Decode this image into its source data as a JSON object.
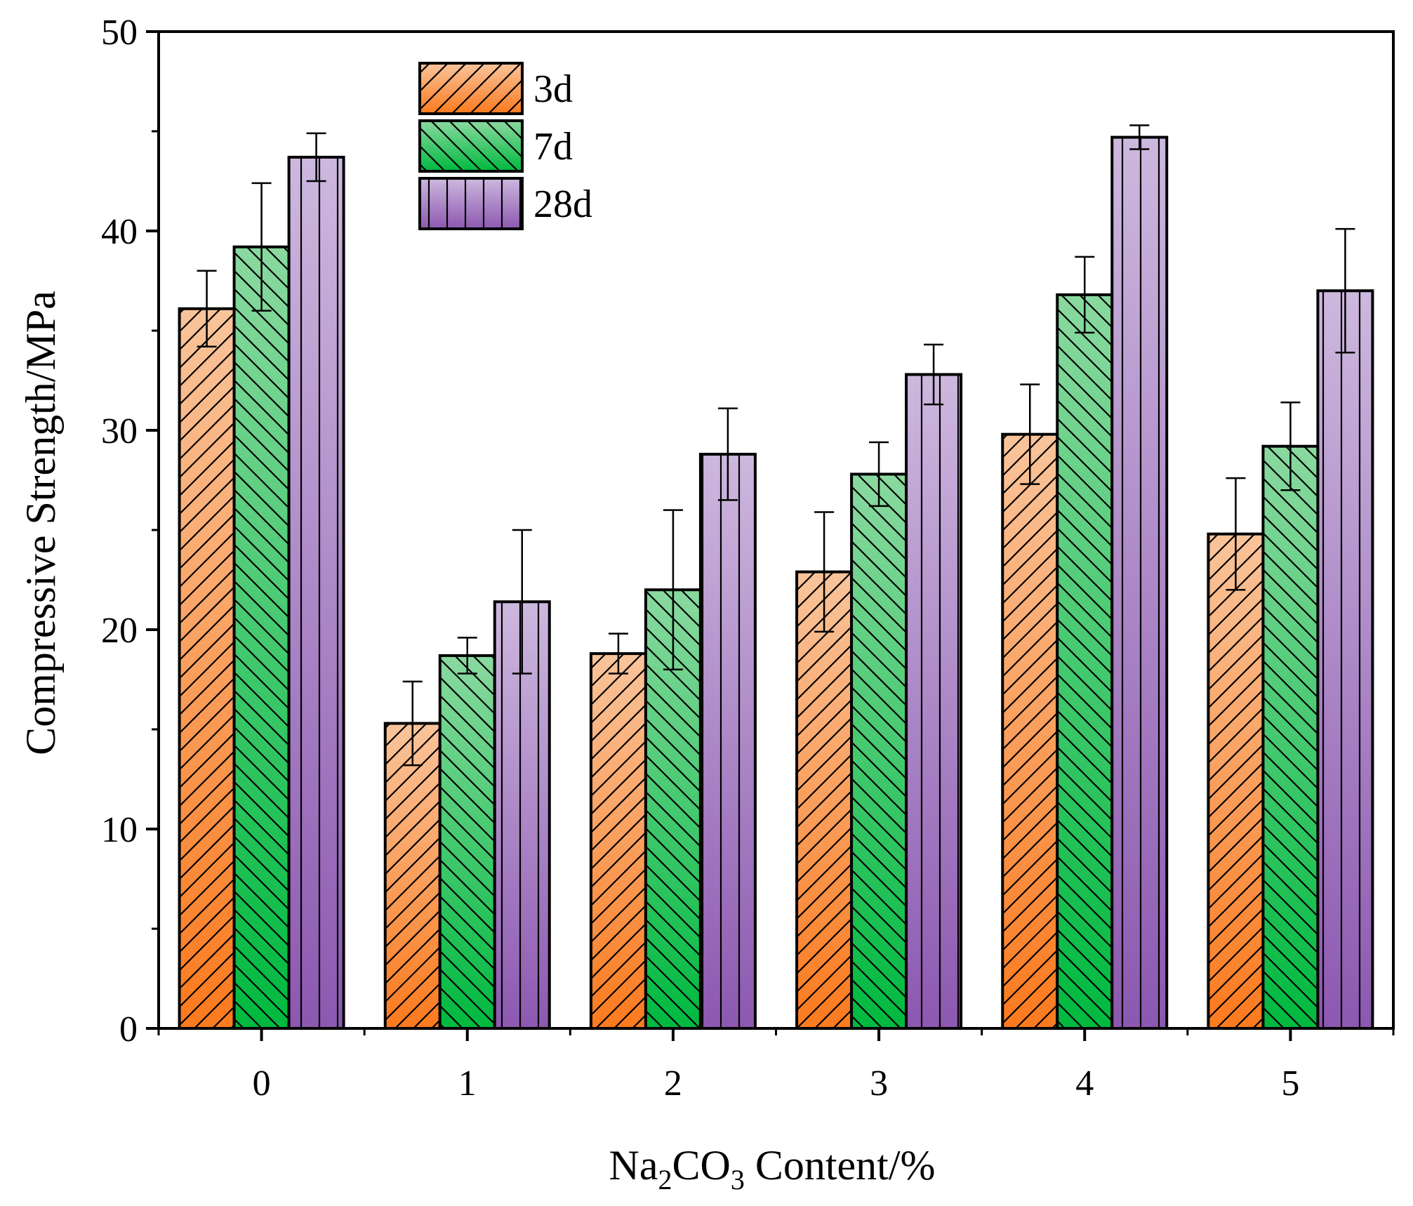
{
  "chart_data": {
    "type": "bar",
    "xlabel": {
      "prefix": "Na",
      "sub1": "2",
      "mid": "CO",
      "sub2": "3",
      "suffix": " Content/%"
    },
    "ylabel": "Compressive Strength/MPa",
    "categories": [
      "0",
      "1",
      "2",
      "3",
      "4",
      "5"
    ],
    "ylim": [
      0,
      50
    ],
    "yticks": [
      "0",
      "10",
      "20",
      "30",
      "40",
      "50"
    ],
    "grid": false,
    "legend_position": "top-left",
    "series": [
      {
        "name": "3d",
        "values": [
          36.1,
          15.3,
          18.8,
          22.9,
          29.8,
          24.8
        ],
        "errors": [
          1.9,
          2.1,
          1.0,
          3.0,
          2.5,
          2.8
        ],
        "color_top": "#f9c49b",
        "color_bottom": "#fb7a1e",
        "hatch": "forward-diagonal"
      },
      {
        "name": "7d",
        "values": [
          39.2,
          18.7,
          22.0,
          27.8,
          36.8,
          29.2
        ],
        "errors": [
          3.2,
          0.9,
          4.0,
          1.6,
          1.9,
          2.2
        ],
        "color_top": "#8ad9a0",
        "color_bottom": "#00b93f",
        "hatch": "back-diagonal"
      },
      {
        "name": "28d",
        "values": [
          43.7,
          21.4,
          28.8,
          32.8,
          44.7,
          37.0
        ],
        "errors": [
          1.2,
          3.6,
          2.3,
          1.5,
          0.6,
          3.1
        ],
        "color_top": "#cdb8de",
        "color_bottom": "#8c58b0",
        "hatch": "vertical"
      }
    ]
  }
}
